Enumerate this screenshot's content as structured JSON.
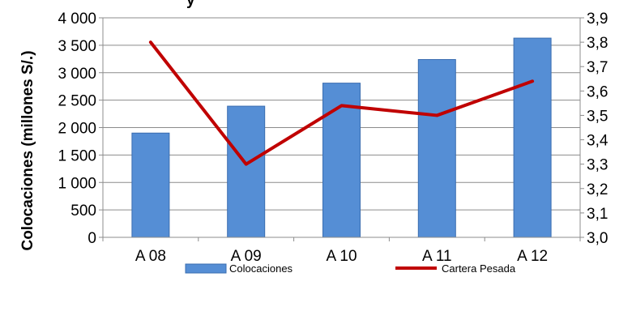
{
  "chart_data": {
    "type": "bar",
    "title": "y",
    "categories": [
      "A 08",
      "A 09",
      "A 10",
      "A 11",
      "A 12"
    ],
    "ylabel": "Colocaciones (millones  S/.)",
    "ylim": [
      0,
      4000
    ],
    "yticks": [
      "0",
      "500",
      "1 000",
      "1 500",
      "2 000",
      "2 500",
      "3 000",
      "3 500",
      "4 000"
    ],
    "y2lim": [
      3.0,
      3.9
    ],
    "y2ticks": [
      "3,0",
      "3,1",
      "3,2",
      "3,3",
      "3,4",
      "3,5",
      "3,6",
      "3,7",
      "3,8",
      "3,9"
    ],
    "grid": true,
    "legend_position": "bottom",
    "series": [
      {
        "name": "Colocaciones",
        "type": "bar",
        "axis": "left",
        "color": "#558ed5",
        "values": [
          1900,
          2390,
          2810,
          3240,
          3630
        ]
      },
      {
        "name": "Cartera Pesada",
        "type": "line",
        "axis": "right",
        "color": "#c00000",
        "values": [
          3.8,
          3.3,
          3.54,
          3.5,
          3.64
        ]
      }
    ]
  }
}
